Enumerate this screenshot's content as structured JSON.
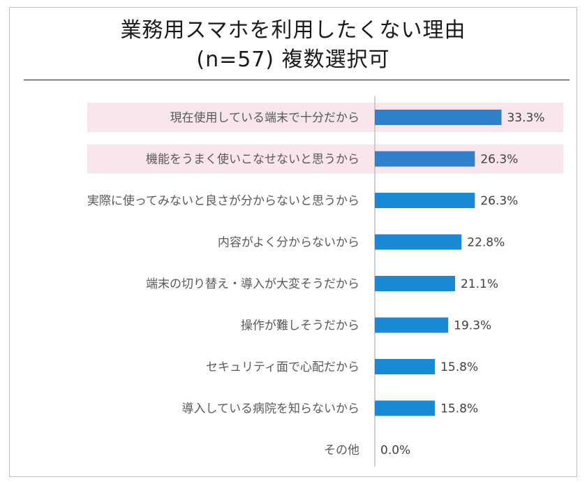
{
  "title": {
    "line1": "業務用スマホを利用したくない理由",
    "line2": "(n=57) 複数選択可"
  },
  "colors": {
    "bar": "#1b8ad6",
    "bar_highlight": "#2f7fca",
    "highlight_band": "#f8e6ec",
    "axis": "#bfbfbf",
    "label_text": "#595959",
    "value_text": "#404040"
  },
  "chart_data": {
    "type": "bar",
    "orientation": "horizontal",
    "title": "業務用スマホを利用したくない理由 (n=57) 複数選択可",
    "categories": [
      "現在使用している端末で十分だから",
      "機能をうまく使いこなせないと思うから",
      "実際に使ってみないと良さが分からないと思うから",
      "内容がよく分からないから",
      "端末の切り替え・導入が大変そうだから",
      "操作が難しそうだから",
      "セキュリティ面で心配だから",
      "導入している病院を知らないから",
      "その他"
    ],
    "values": [
      33.3,
      26.3,
      26.3,
      22.8,
      21.1,
      19.3,
      15.8,
      15.8,
      0.0
    ],
    "value_labels": [
      "33.3%",
      "26.3%",
      "26.3%",
      "22.8%",
      "21.1%",
      "19.3%",
      "15.8%",
      "15.8%",
      "0.0%"
    ],
    "highlighted": [
      true,
      true,
      false,
      false,
      false,
      false,
      false,
      false,
      false
    ],
    "unit": "%",
    "xlim": [
      0,
      100
    ],
    "grid": false,
    "legend": false
  }
}
